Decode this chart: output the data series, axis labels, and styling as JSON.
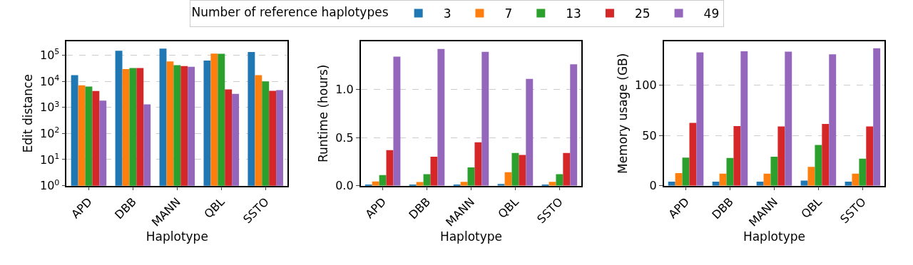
{
  "chart_data": [
    {
      "type": "bar",
      "legend_title": "Number of reference haplotypes",
      "legend": "top",
      "xlabel": "Haplotype",
      "ylabel": "Edit distance",
      "log": "y",
      "grid": "y",
      "categories": [
        "APD",
        "DBB",
        "MANN",
        "QBL",
        "SSTO"
      ],
      "ylim": [
        1,
        340000
      ],
      "yticks": [
        {
          "value": 1,
          "label": "10$^{0}$"
        },
        {
          "value": 10,
          "label": "10$^{1}$"
        },
        {
          "value": 100,
          "label": "10$^{2}$"
        },
        {
          "value": 1000,
          "label": "10$^{3}$"
        },
        {
          "value": 10000,
          "label": "10$^{4}$"
        },
        {
          "value": 100000,
          "label": "10$^{5}$"
        }
      ],
      "series": [
        {
          "name": "3",
          "color": "#1f77b4",
          "values": [
            17000,
            148000,
            178000,
            62000,
            132000
          ]
        },
        {
          "name": "7",
          "color": "#ff7f0e",
          "values": [
            7000,
            29000,
            57000,
            115000,
            17000
          ]
        },
        {
          "name": "13",
          "color": "#2ca02c",
          "values": [
            6300,
            32000,
            41000,
            112000,
            9800
          ]
        },
        {
          "name": "25",
          "color": "#d62728",
          "values": [
            4200,
            32000,
            38000,
            4900,
            4300
          ]
        },
        {
          "name": "49",
          "color": "#9467bd",
          "values": [
            1800,
            1300,
            36000,
            3300,
            4600
          ]
        }
      ]
    },
    {
      "type": "bar",
      "xlabel": "Haplotype",
      "ylabel": "Runtime (hours)",
      "grid": "y",
      "categories": [
        "APD",
        "DBB",
        "MANN",
        "QBL",
        "SSTO"
      ],
      "ylim": [
        0,
        1.5
      ],
      "yticks": [
        {
          "value": 0,
          "label": "0.0"
        },
        {
          "value": 0.5,
          "label": "0.5"
        },
        {
          "value": 1,
          "label": "1.0"
        }
      ],
      "series": [
        {
          "color": "#1f77b4",
          "values": [
            0.012,
            0.01,
            0.01,
            0.017,
            0.012
          ]
        },
        {
          "color": "#ff7f0e",
          "values": [
            0.043,
            0.038,
            0.04,
            0.14,
            0.04
          ]
        },
        {
          "color": "#2ca02c",
          "values": [
            0.11,
            0.12,
            0.19,
            0.34,
            0.12
          ]
        },
        {
          "color": "#d62728",
          "values": [
            0.37,
            0.3,
            0.45,
            0.32,
            0.34
          ]
        },
        {
          "color": "#9467bd",
          "values": [
            1.34,
            1.42,
            1.39,
            1.11,
            1.26
          ]
        }
      ]
    },
    {
      "type": "bar",
      "xlabel": "Haplotype",
      "ylabel": "Memory usage (GB)",
      "grid": "y",
      "categories": [
        "APD",
        "DBB",
        "MANN",
        "QBL",
        "SSTO"
      ],
      "ylim": [
        0,
        144
      ],
      "yticks": [
        0,
        50,
        100
      ],
      "series": [
        {
          "color": "#1f77b4",
          "values": [
            4,
            4,
            4,
            5,
            4
          ]
        },
        {
          "color": "#ff7f0e",
          "values": [
            12.5,
            12,
            12,
            18.8,
            12
          ]
        },
        {
          "color": "#2ca02c",
          "values": [
            28,
            27.6,
            28.8,
            40.6,
            27
          ]
        },
        {
          "color": "#d62728",
          "values": [
            62.6,
            59.4,
            59,
            61.5,
            59
          ]
        },
        {
          "color": "#9467bd",
          "values": [
            133,
            134,
            133.6,
            130.9,
            137
          ]
        }
      ]
    }
  ]
}
